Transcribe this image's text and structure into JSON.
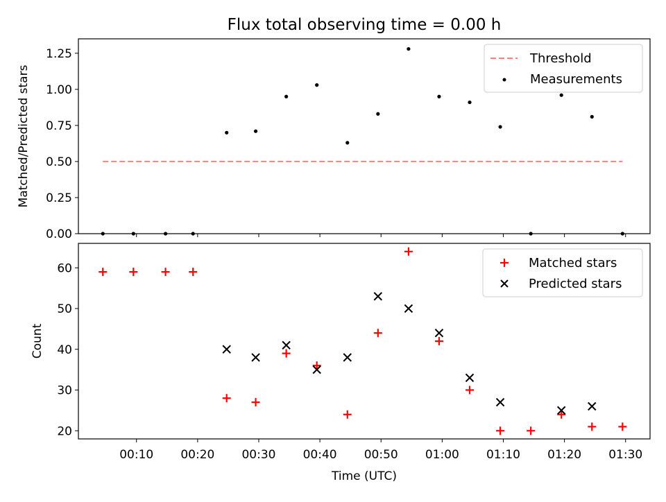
{
  "chart_data": [
    {
      "type": "scatter",
      "title": "Flux total observing time = 0.00 h",
      "ylabel": "Matched/Predicted stars",
      "xlabel": "",
      "xlim": [
        "00:00:30",
        "01:34:00"
      ],
      "ylim": [
        0,
        1.35
      ],
      "ytick_labels": [
        "0.00",
        "0.25",
        "0.50",
        "0.75",
        "1.00",
        "1.25"
      ],
      "yticks": [
        0,
        0.25,
        0.5,
        0.75,
        1.0,
        1.25
      ],
      "legend_position": "top-right",
      "grid": false,
      "series": [
        {
          "name": "Threshold",
          "kind": "line",
          "style": "dashed",
          "color": "#ff7f7f",
          "x": [
            "00:04:30",
            "01:29:30"
          ],
          "y": [
            0.5,
            0.5
          ]
        },
        {
          "name": "Measurements",
          "kind": "scatter",
          "marker": "dot",
          "color": "#000000",
          "x": [
            "00:04:30",
            "00:09:30",
            "00:14:45",
            "00:19:15",
            "00:24:45",
            "00:29:30",
            "00:34:30",
            "00:39:30",
            "00:44:30",
            "00:49:30",
            "00:54:30",
            "00:59:30",
            "01:04:30",
            "01:09:30",
            "01:14:30",
            "01:19:30",
            "01:24:30",
            "01:29:30"
          ],
          "y": [
            0,
            0,
            0,
            0,
            0.7,
            0.71,
            0.95,
            1.03,
            0.63,
            0.83,
            1.28,
            0.95,
            0.91,
            0.74,
            0,
            0.96,
            0.81,
            0
          ]
        }
      ]
    },
    {
      "type": "scatter",
      "title": "",
      "xlabel": "Time (UTC)",
      "ylabel": "Count",
      "xlim": [
        "00:00:30",
        "01:34:00"
      ],
      "ylim": [
        18,
        66
      ],
      "xtick_values": [
        "00:10:00",
        "00:20:00",
        "00:30:00",
        "00:40:00",
        "00:50:00",
        "01:00:00",
        "01:10:00",
        "01:20:00",
        "01:30:00"
      ],
      "xtick_labels": [
        "00:10",
        "00:20",
        "00:30",
        "00:40",
        "00:50",
        "01:00",
        "01:10",
        "01:20",
        "01:30"
      ],
      "yticks": [
        20,
        30,
        40,
        50,
        60
      ],
      "ytick_labels": [
        "20",
        "30",
        "40",
        "50",
        "60"
      ],
      "legend_position": "top-right",
      "grid": false,
      "series": [
        {
          "name": "Matched stars",
          "kind": "scatter",
          "marker": "plus",
          "color": "#ff0000",
          "x": [
            "00:04:30",
            "00:09:30",
            "00:14:45",
            "00:19:15",
            "00:24:45",
            "00:29:30",
            "00:34:30",
            "00:39:30",
            "00:44:30",
            "00:49:30",
            "00:54:30",
            "00:59:30",
            "01:04:30",
            "01:09:30",
            "01:14:30",
            "01:19:30",
            "01:24:30",
            "01:29:30"
          ],
          "y": [
            59,
            59,
            59,
            59,
            28,
            27,
            39,
            36,
            24,
            44,
            64,
            42,
            30,
            20,
            20,
            24,
            21,
            21
          ]
        },
        {
          "name": "Predicted stars",
          "kind": "scatter",
          "marker": "x",
          "color": "#000000",
          "x": [
            "00:24:45",
            "00:29:30",
            "00:34:30",
            "00:39:30",
            "00:44:30",
            "00:49:30",
            "00:54:30",
            "00:59:30",
            "01:04:30",
            "01:09:30",
            "01:19:30",
            "01:24:30"
          ],
          "y": [
            40,
            38,
            41,
            35,
            38,
            53,
            50,
            44,
            33,
            27,
            25,
            26
          ]
        }
      ]
    }
  ]
}
